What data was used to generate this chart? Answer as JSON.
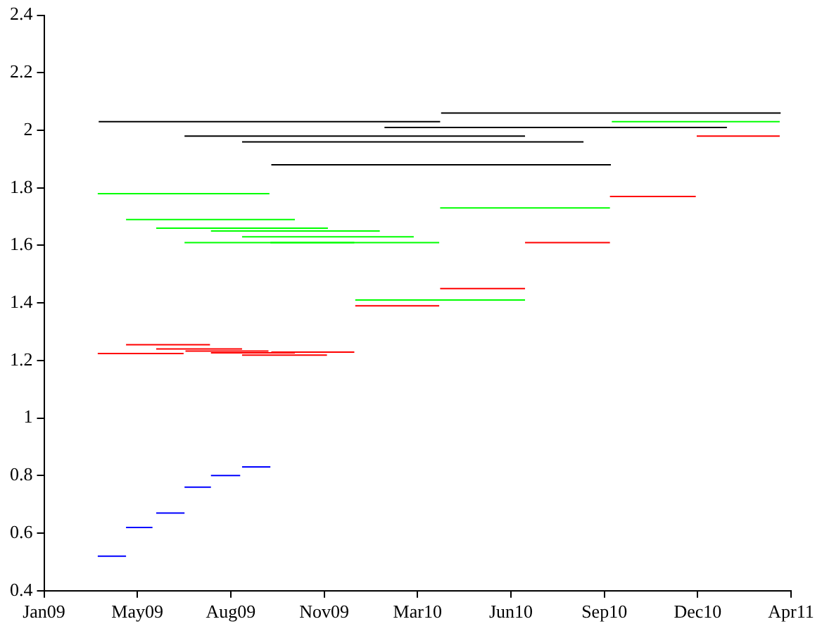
{
  "chart_data": {
    "type": "line",
    "marker": "none",
    "line_style": "solid",
    "grid": false,
    "legend": false,
    "xlim": [
      "2009-01-31",
      "2011-04-03"
    ],
    "xticks": [
      {
        "value": "2009-01-31",
        "label": "Jan09"
      },
      {
        "value": "2009-05-10",
        "label": "May09"
      },
      {
        "value": "2009-08-17",
        "label": "Aug09"
      },
      {
        "value": "2009-11-24",
        "label": "Nov09"
      },
      {
        "value": "2010-03-03",
        "label": "Mar10"
      },
      {
        "value": "2010-06-10",
        "label": "Jun10"
      },
      {
        "value": "2010-09-17",
        "label": "Sep10"
      },
      {
        "value": "2010-12-25",
        "label": "Dec10"
      },
      {
        "value": "2011-04-03",
        "label": "Apr11"
      }
    ],
    "ylim": [
      0.4,
      2.4
    ],
    "yticks": [
      0.4,
      0.6,
      0.8,
      1,
      1.2,
      1.4,
      1.6,
      1.8,
      2,
      2.2,
      2.4
    ],
    "series": [
      {
        "color": "#000000",
        "x": [
          "2009-03-30",
          "2010-03-27"
        ],
        "values": [
          2.03,
          2.03
        ]
      },
      {
        "color": "#000000",
        "x": [
          "2010-03-28",
          "2011-03-23"
        ],
        "values": [
          2.06,
          2.06
        ]
      },
      {
        "color": "#000000",
        "x": [
          "2010-01-27",
          "2011-01-25"
        ],
        "values": [
          2.01,
          2.01
        ]
      },
      {
        "color": "#000000",
        "x": [
          "2009-06-29",
          "2010-06-25"
        ],
        "values": [
          1.98,
          1.98
        ]
      },
      {
        "color": "#000000",
        "x": [
          "2009-08-29",
          "2010-08-26"
        ],
        "values": [
          1.96,
          1.96
        ]
      },
      {
        "color": "#000000",
        "x": [
          "2009-09-29",
          "2010-09-24"
        ],
        "values": [
          1.88,
          1.88
        ]
      },
      {
        "color": "#00ff00",
        "x": [
          "2010-09-25",
          "2011-03-22"
        ],
        "values": [
          2.03,
          2.03
        ]
      },
      {
        "color": "#00ff00",
        "x": [
          "2009-03-29",
          "2009-09-27"
        ],
        "values": [
          1.78,
          1.78
        ]
      },
      {
        "color": "#00ff00",
        "x": [
          "2010-03-27",
          "2010-09-23"
        ],
        "values": [
          1.73,
          1.73
        ]
      },
      {
        "color": "#00ff00",
        "x": [
          "2009-04-28",
          "2009-10-24"
        ],
        "values": [
          1.69,
          1.69
        ]
      },
      {
        "color": "#00ff00",
        "x": [
          "2009-05-30",
          "2009-11-28"
        ],
        "values": [
          1.66,
          1.66
        ]
      },
      {
        "color": "#00ff00",
        "x": [
          "2009-07-27",
          "2010-01-22"
        ],
        "values": [
          1.65,
          1.65
        ]
      },
      {
        "color": "#00ff00",
        "x": [
          "2009-08-29",
          "2010-02-27"
        ],
        "values": [
          1.63,
          1.63
        ]
      },
      {
        "color": "#00ff00",
        "x": [
          "2009-06-29",
          "2009-12-26"
        ],
        "values": [
          1.61,
          1.61
        ]
      },
      {
        "color": "#00ff00",
        "x": [
          "2009-09-28",
          "2010-03-26"
        ],
        "values": [
          1.61,
          1.61
        ]
      },
      {
        "color": "#00ff00",
        "x": [
          "2009-12-27",
          "2010-06-25"
        ],
        "values": [
          1.41,
          1.41
        ]
      },
      {
        "color": "#ff0000",
        "x": [
          "2010-12-24",
          "2011-03-22"
        ],
        "values": [
          1.98,
          1.98
        ]
      },
      {
        "color": "#ff0000",
        "x": [
          "2010-09-23",
          "2010-12-23"
        ],
        "values": [
          1.77,
          1.77
        ]
      },
      {
        "color": "#ff0000",
        "x": [
          "2010-06-25",
          "2010-09-23"
        ],
        "values": [
          1.61,
          1.61
        ]
      },
      {
        "color": "#ff0000",
        "x": [
          "2010-03-27",
          "2010-06-25"
        ],
        "values": [
          1.45,
          1.45
        ]
      },
      {
        "color": "#ff0000",
        "x": [
          "2009-12-27",
          "2010-03-26"
        ],
        "values": [
          1.39,
          1.39
        ]
      },
      {
        "color": "#ff0000",
        "x": [
          "2009-04-28",
          "2009-07-26"
        ],
        "values": [
          1.255,
          1.255
        ]
      },
      {
        "color": "#ff0000",
        "x": [
          "2009-05-30",
          "2009-08-29"
        ],
        "values": [
          1.24,
          1.24
        ]
      },
      {
        "color": "#ff0000",
        "x": [
          "2009-06-30",
          "2009-09-26"
        ],
        "values": [
          1.233,
          1.233
        ]
      },
      {
        "color": "#ff0000",
        "x": [
          "2009-07-27",
          "2009-10-24"
        ],
        "values": [
          1.227,
          1.227
        ]
      },
      {
        "color": "#ff0000",
        "x": [
          "2009-08-29",
          "2009-11-27"
        ],
        "values": [
          1.219,
          1.219
        ]
      },
      {
        "color": "#ff0000",
        "x": [
          "2009-09-29",
          "2009-12-26"
        ],
        "values": [
          1.229,
          1.229
        ]
      },
      {
        "color": "#ff0000",
        "x": [
          "2009-03-29",
          "2009-06-28"
        ],
        "values": [
          1.224,
          1.224
        ]
      },
      {
        "color": "#0000ff",
        "x": [
          "2009-03-29",
          "2009-04-28"
        ],
        "values": [
          0.52,
          0.52
        ]
      },
      {
        "color": "#0000ff",
        "x": [
          "2009-04-28",
          "2009-05-26"
        ],
        "values": [
          0.62,
          0.62
        ]
      },
      {
        "color": "#0000ff",
        "x": [
          "2009-05-30",
          "2009-06-29"
        ],
        "values": [
          0.67,
          0.67
        ]
      },
      {
        "color": "#0000ff",
        "x": [
          "2009-06-29",
          "2009-07-27"
        ],
        "values": [
          0.76,
          0.76
        ]
      },
      {
        "color": "#0000ff",
        "x": [
          "2009-07-27",
          "2009-08-27"
        ],
        "values": [
          0.8,
          0.8
        ]
      },
      {
        "color": "#0000ff",
        "x": [
          "2009-08-29",
          "2009-09-28"
        ],
        "values": [
          0.83,
          0.83
        ]
      }
    ]
  }
}
